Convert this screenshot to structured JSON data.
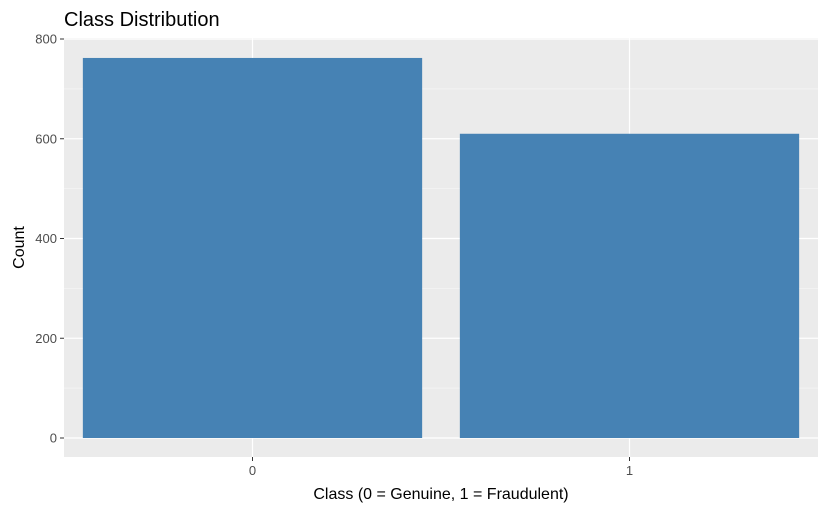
{
  "chart_data": {
    "type": "bar",
    "title": "Class Distribution",
    "xlabel": "Class (0 = Genuine, 1 = Fraudulent)",
    "ylabel": "Count",
    "categories": [
      "0",
      "1"
    ],
    "values": [
      762,
      610
    ],
    "ylim": [
      0,
      800
    ],
    "yticks": [
      0,
      200,
      400,
      600,
      800
    ],
    "grid": true,
    "legend": "none",
    "colors": {
      "bar": "#4682b4",
      "panel_background": "#ebebeb",
      "grid_major": "#ffffff",
      "grid_minor": "#f5f5f5",
      "tick": "#333333"
    }
  }
}
